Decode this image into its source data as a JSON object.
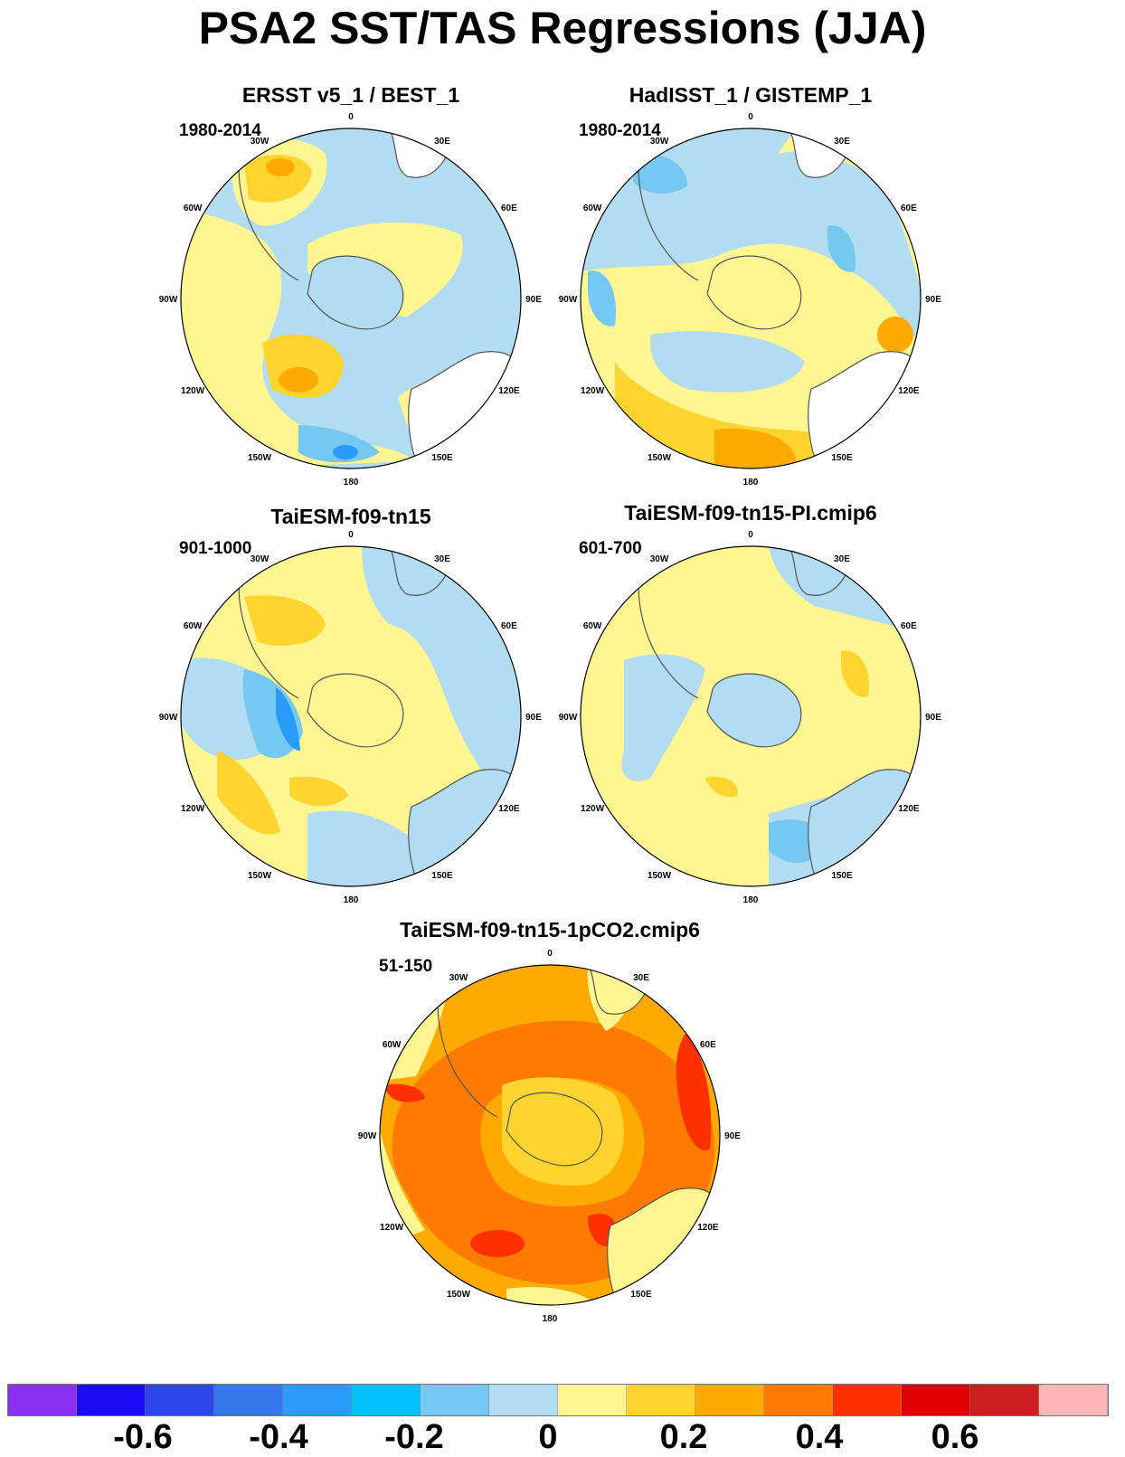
{
  "main_title": "PSA2 SST/TAS Regressions (JJA)",
  "panels": [
    {
      "title": "ERSST v5_1 / BEST_1",
      "period": "1980-2014"
    },
    {
      "title": "HadISST_1 / GISTEMP_1",
      "period": "1980-2014"
    },
    {
      "title": "TaiESM-f09-tn15",
      "period": "901-1000"
    },
    {
      "title": "TaiESM-f09-tn15-PI.cmip6",
      "period": "601-700"
    },
    {
      "title": "TaiESM-f09-tn15-1pCO2.cmip6",
      "period": "51-150"
    }
  ],
  "longitude_labels": [
    "0",
    "30E",
    "60E",
    "90E",
    "120E",
    "150E",
    "180",
    "150W",
    "120W",
    "90W",
    "60W",
    "30W"
  ],
  "map_projection": "south-polar stereographic",
  "colorbar": {
    "colors": [
      "#8b2ff0",
      "#1b0cf5",
      "#2b47e8",
      "#3577ec",
      "#2a9bf8",
      "#00c2fb",
      "#74c8f2",
      "#b2dcf2",
      "#fff591",
      "#ffd42f",
      "#ffaa00",
      "#ff7a00",
      "#ff3000",
      "#e00000",
      "#cc1f1f",
      "#ffb5b5"
    ],
    "tick_labels": [
      "-0.6",
      "-0.4",
      "-0.2",
      "0",
      "0.2",
      "0.4",
      "0.6"
    ]
  }
}
